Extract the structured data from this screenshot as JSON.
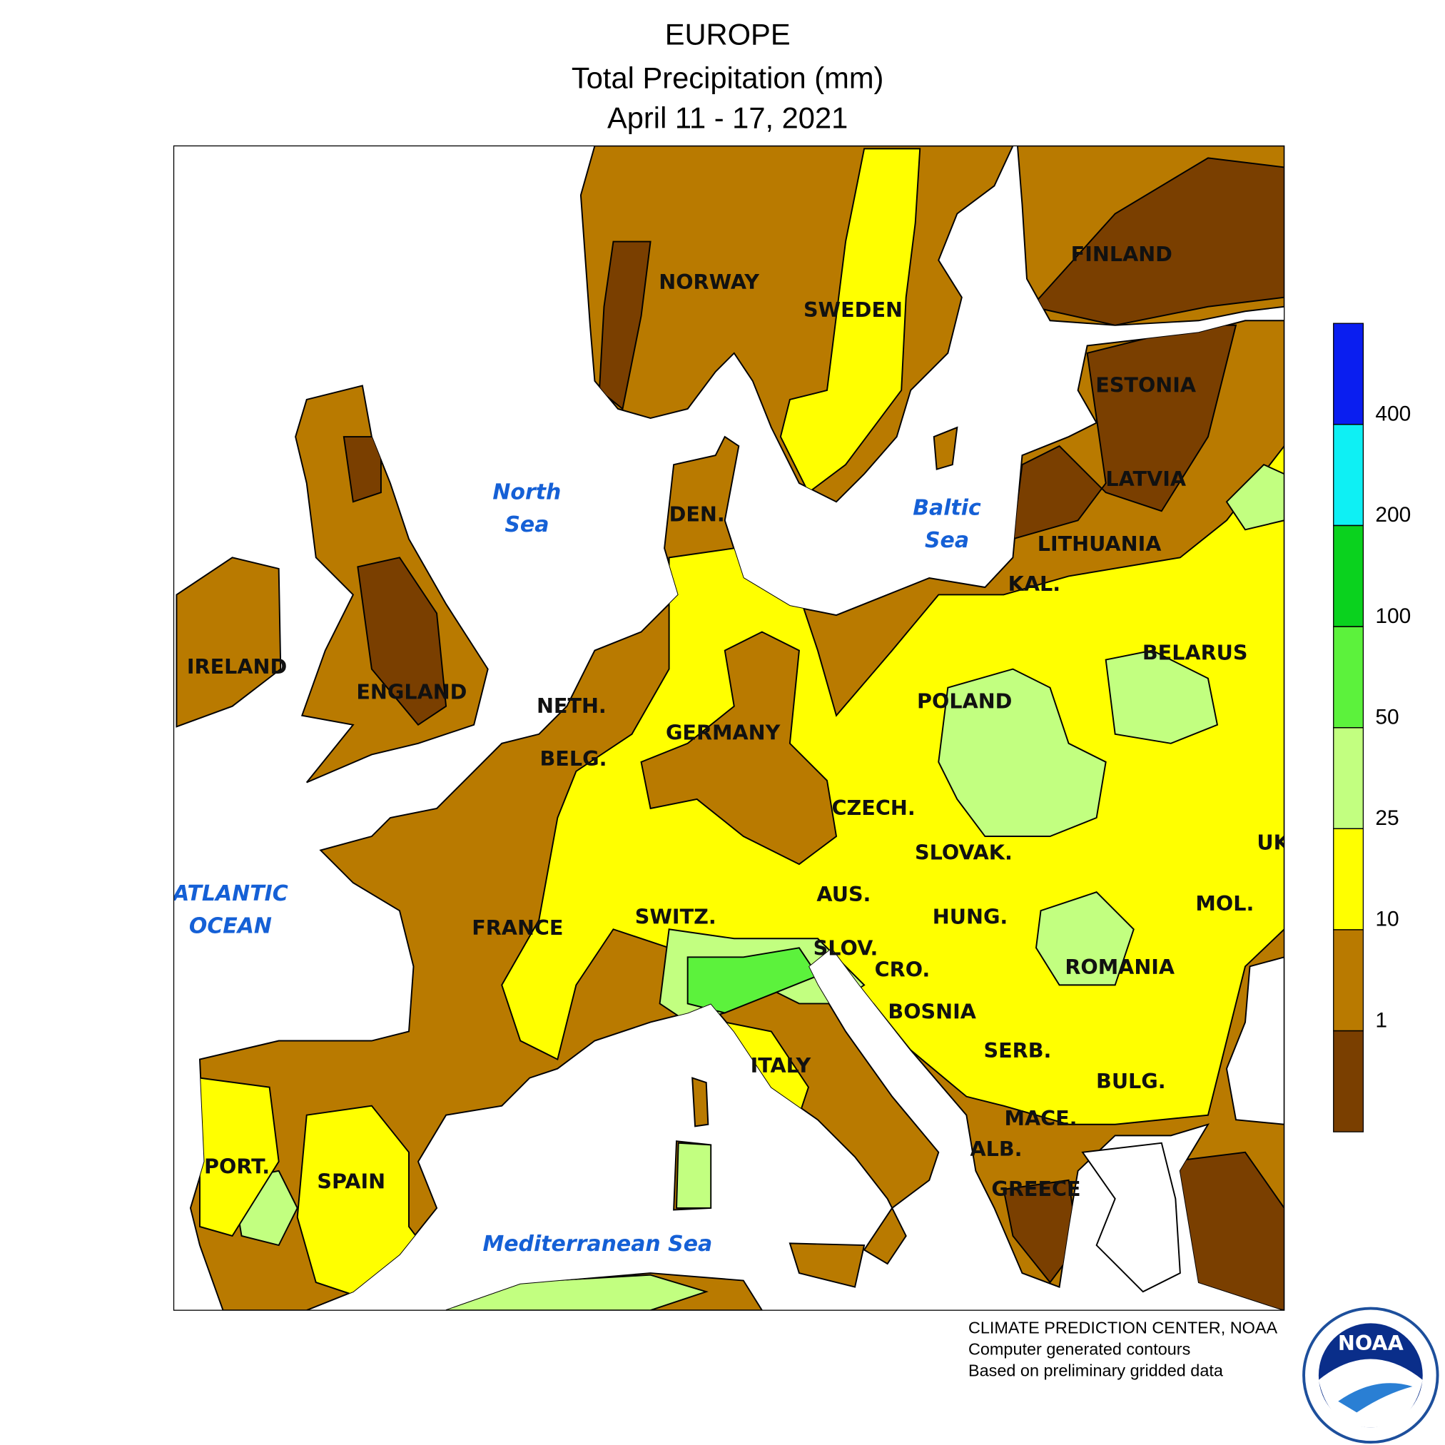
{
  "title": "EUROPE",
  "subtitle": "Total Precipitation (mm)",
  "date": "April 11 - 17, 2021",
  "country_labels": [
    "NORWAY",
    "SWEDEN",
    "FINLAND",
    "ESTONIA",
    "LATVIA",
    "LITHUANIA",
    "KAL.",
    "DEN.",
    "IRELAND",
    "ENGLAND",
    "NETH.",
    "BELG.",
    "GERMANY",
    "POLAND",
    "BELARUS",
    "CZECH.",
    "SLOVAK.",
    "UK",
    "AUS.",
    "SWITZ.",
    "HUNG.",
    "MOL.",
    "FRANCE",
    "SLOV.",
    "CRO.",
    "ROMANIA",
    "BOSNIA",
    "SERB.",
    "ITALY",
    "BULG.",
    "MACE.",
    "ALB.",
    "GREECE",
    "PORT.",
    "SPAIN"
  ],
  "sea_labels": [
    [
      "North",
      "Sea"
    ],
    [
      "Baltic",
      "Sea"
    ],
    [
      "ATLANTIC",
      "OCEAN"
    ],
    [
      "Mediterranean Sea"
    ]
  ],
  "legend": {
    "ticks": [
      1,
      10,
      25,
      50,
      100,
      200,
      400
    ],
    "colors": [
      "#7a3f00",
      "#b97a00",
      "#ffff00",
      "#c2ff80",
      "#5cf23c",
      "#0ad21e",
      "#0ef0f4",
      "#0a1ef0"
    ]
  },
  "credits": [
    "CLIMATE PREDICTION CENTER, NOAA",
    "Computer generated contours",
    "Based on preliminary gridded data"
  ],
  "logo": "NOAA"
}
